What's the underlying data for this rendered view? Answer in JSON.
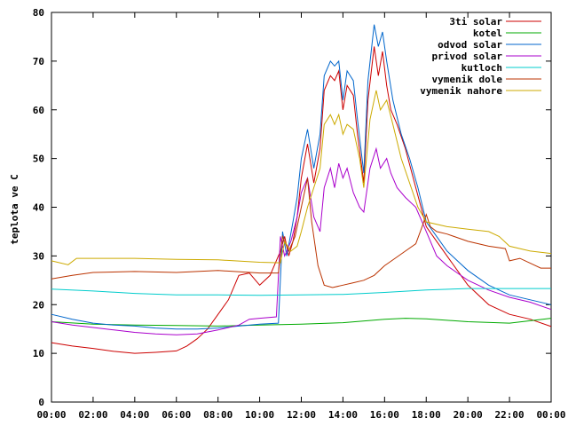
{
  "chart_data": {
    "type": "line",
    "title": "",
    "xlabel": "",
    "ylabel": "teplota ve C",
    "xlim": [
      0,
      24
    ],
    "ylim": [
      0,
      80
    ],
    "grid": false,
    "legend": "top-right",
    "x_ticks": [
      "00:00",
      "02:00",
      "04:00",
      "06:00",
      "08:00",
      "10:00",
      "12:00",
      "14:00",
      "16:00",
      "18:00",
      "20:00",
      "22:00",
      "00:00"
    ],
    "y_ticks": [
      0,
      10,
      20,
      30,
      40,
      50,
      60,
      70,
      80
    ],
    "series": [
      {
        "name": "3ti solar",
        "color": "#cc0000",
        "points": [
          [
            0,
            12.2
          ],
          [
            1,
            11.5
          ],
          [
            2,
            11
          ],
          [
            3,
            10.4
          ],
          [
            4,
            10
          ],
          [
            5,
            10.2
          ],
          [
            6,
            10.5
          ],
          [
            6.5,
            11.5
          ],
          [
            7,
            13
          ],
          [
            7.5,
            15
          ],
          [
            8,
            18
          ],
          [
            8.5,
            21
          ],
          [
            9,
            26
          ],
          [
            9.5,
            26.5
          ],
          [
            10,
            24
          ],
          [
            10.5,
            26
          ],
          [
            11,
            31
          ],
          [
            11.2,
            34
          ],
          [
            11.4,
            30
          ],
          [
            11.6,
            33
          ],
          [
            11.8,
            38
          ],
          [
            12,
            46
          ],
          [
            12.3,
            53
          ],
          [
            12.6,
            45
          ],
          [
            12.9,
            52
          ],
          [
            13.1,
            64
          ],
          [
            13.4,
            67
          ],
          [
            13.6,
            66
          ],
          [
            13.8,
            68
          ],
          [
            14,
            60
          ],
          [
            14.2,
            65
          ],
          [
            14.5,
            63
          ],
          [
            14.7,
            55
          ],
          [
            15,
            45
          ],
          [
            15.2,
            62
          ],
          [
            15.5,
            73
          ],
          [
            15.7,
            67
          ],
          [
            15.9,
            72
          ],
          [
            16.1,
            65
          ],
          [
            16.3,
            60
          ],
          [
            16.6,
            57
          ],
          [
            17,
            52
          ],
          [
            17.5,
            44
          ],
          [
            18,
            36
          ],
          [
            18.5,
            33
          ],
          [
            19,
            30
          ],
          [
            19.5,
            27
          ],
          [
            20,
            24
          ],
          [
            21,
            20
          ],
          [
            22,
            18
          ],
          [
            23,
            17
          ],
          [
            24,
            15.5
          ]
        ]
      },
      {
        "name": "kotel",
        "color": "#00aa00",
        "points": [
          [
            0,
            16.5
          ],
          [
            2,
            16
          ],
          [
            4,
            15.8
          ],
          [
            6,
            15.7
          ],
          [
            8,
            15.6
          ],
          [
            10,
            15.8
          ],
          [
            12,
            16
          ],
          [
            14,
            16.3
          ],
          [
            16,
            17
          ],
          [
            17,
            17.2
          ],
          [
            18,
            17.1
          ],
          [
            20,
            16.5
          ],
          [
            22,
            16.2
          ],
          [
            24,
            17.2
          ]
        ]
      },
      {
        "name": "odvod solar",
        "color": "#0066cc",
        "points": [
          [
            0,
            18
          ],
          [
            1,
            17
          ],
          [
            2,
            16.2
          ],
          [
            3,
            15.8
          ],
          [
            4,
            15.6
          ],
          [
            5,
            15.2
          ],
          [
            6,
            15
          ],
          [
            7,
            15
          ],
          [
            8,
            15.2
          ],
          [
            9,
            15.6
          ],
          [
            10,
            16
          ],
          [
            10.9,
            16.2
          ],
          [
            11.1,
            35
          ],
          [
            11.3,
            30
          ],
          [
            11.6,
            37
          ],
          [
            11.8,
            42
          ],
          [
            12,
            50
          ],
          [
            12.3,
            56
          ],
          [
            12.6,
            48
          ],
          [
            12.9,
            55
          ],
          [
            13.1,
            67
          ],
          [
            13.4,
            70
          ],
          [
            13.6,
            69
          ],
          [
            13.8,
            70
          ],
          [
            14,
            62
          ],
          [
            14.2,
            68
          ],
          [
            14.5,
            66
          ],
          [
            14.7,
            58
          ],
          [
            15,
            47
          ],
          [
            15.2,
            66
          ],
          [
            15.5,
            77.5
          ],
          [
            15.7,
            73
          ],
          [
            15.9,
            76
          ],
          [
            16.1,
            70
          ],
          [
            16.4,
            62
          ],
          [
            16.8,
            55
          ],
          [
            17.2,
            50
          ],
          [
            17.6,
            44
          ],
          [
            18,
            37
          ],
          [
            18.5,
            34
          ],
          [
            19,
            31
          ],
          [
            19.5,
            29
          ],
          [
            20,
            27
          ],
          [
            21,
            24
          ],
          [
            22,
            22
          ],
          [
            23,
            21
          ],
          [
            24,
            20
          ]
        ]
      },
      {
        "name": "privod solar",
        "color": "#aa00cc",
        "points": [
          [
            0,
            16.5
          ],
          [
            1,
            15.8
          ],
          [
            2,
            15.3
          ],
          [
            3,
            14.8
          ],
          [
            4,
            14.3
          ],
          [
            5,
            14
          ],
          [
            6,
            13.8
          ],
          [
            7,
            14
          ],
          [
            8,
            14.8
          ],
          [
            9,
            15.8
          ],
          [
            9.5,
            17
          ],
          [
            10,
            17.2
          ],
          [
            10.8,
            17.5
          ],
          [
            11,
            34
          ],
          [
            11.2,
            30
          ],
          [
            11.5,
            33
          ],
          [
            11.8,
            38
          ],
          [
            12,
            43
          ],
          [
            12.3,
            46
          ],
          [
            12.6,
            38
          ],
          [
            12.9,
            35
          ],
          [
            13.1,
            44
          ],
          [
            13.4,
            48
          ],
          [
            13.6,
            44
          ],
          [
            13.8,
            49
          ],
          [
            14,
            46
          ],
          [
            14.2,
            48
          ],
          [
            14.5,
            43
          ],
          [
            14.8,
            40
          ],
          [
            15,
            39
          ],
          [
            15.3,
            48
          ],
          [
            15.6,
            52
          ],
          [
            15.8,
            48
          ],
          [
            16.1,
            50
          ],
          [
            16.3,
            47
          ],
          [
            16.6,
            44
          ],
          [
            17,
            42
          ],
          [
            17.5,
            40
          ],
          [
            18,
            35
          ],
          [
            18.5,
            30
          ],
          [
            19,
            28
          ],
          [
            19.5,
            26.5
          ],
          [
            20,
            25
          ],
          [
            21,
            23
          ],
          [
            22,
            21.5
          ],
          [
            23,
            20.5
          ],
          [
            24,
            19
          ]
        ]
      },
      {
        "name": "kutloch",
        "color": "#00cccc",
        "points": [
          [
            0,
            23.2
          ],
          [
            2,
            22.8
          ],
          [
            4,
            22.3
          ],
          [
            6,
            22
          ],
          [
            8,
            22
          ],
          [
            10,
            21.9
          ],
          [
            12,
            22
          ],
          [
            14,
            22.1
          ],
          [
            16,
            22.5
          ],
          [
            18,
            23
          ],
          [
            20,
            23.3
          ],
          [
            22,
            23.3
          ],
          [
            24,
            23.3
          ]
        ]
      },
      {
        "name": "vymenik dole",
        "color": "#bb3300",
        "points": [
          [
            0,
            25.3
          ],
          [
            1,
            26
          ],
          [
            2,
            26.6
          ],
          [
            4,
            26.8
          ],
          [
            6,
            26.6
          ],
          [
            8,
            27
          ],
          [
            10,
            26.5
          ],
          [
            10.9,
            26.5
          ],
          [
            11.1,
            34
          ],
          [
            11.4,
            31
          ],
          [
            11.7,
            34
          ],
          [
            12,
            40
          ],
          [
            12.3,
            46
          ],
          [
            12.5,
            37
          ],
          [
            12.8,
            28
          ],
          [
            13.1,
            24
          ],
          [
            13.5,
            23.5
          ],
          [
            14,
            24
          ],
          [
            14.5,
            24.5
          ],
          [
            15,
            25
          ],
          [
            15.5,
            26
          ],
          [
            16,
            28
          ],
          [
            16.5,
            29.5
          ],
          [
            17,
            31
          ],
          [
            17.5,
            32.5
          ],
          [
            17.8,
            36
          ],
          [
            18,
            38.5
          ],
          [
            18.2,
            36
          ],
          [
            18.5,
            35
          ],
          [
            19,
            34.5
          ],
          [
            20,
            33
          ],
          [
            21,
            32
          ],
          [
            21.8,
            31.5
          ],
          [
            22,
            29
          ],
          [
            22.5,
            29.5
          ],
          [
            23,
            28.5
          ],
          [
            23.5,
            27.5
          ],
          [
            24,
            27.5
          ]
        ]
      },
      {
        "name": "vymenik nahore",
        "color": "#ccaa00",
        "points": [
          [
            0,
            29
          ],
          [
            0.8,
            28.2
          ],
          [
            1.2,
            29.5
          ],
          [
            2,
            29.5
          ],
          [
            4,
            29.5
          ],
          [
            6,
            29.3
          ],
          [
            8,
            29.2
          ],
          [
            10,
            28.7
          ],
          [
            11,
            28.6
          ],
          [
            11.2,
            33
          ],
          [
            11.5,
            31
          ],
          [
            11.8,
            32
          ],
          [
            12,
            35
          ],
          [
            12.3,
            40
          ],
          [
            12.6,
            44
          ],
          [
            12.9,
            48
          ],
          [
            13.1,
            57
          ],
          [
            13.4,
            59
          ],
          [
            13.6,
            57
          ],
          [
            13.8,
            59
          ],
          [
            14,
            55
          ],
          [
            14.2,
            57
          ],
          [
            14.5,
            56
          ],
          [
            14.8,
            50
          ],
          [
            15,
            44
          ],
          [
            15.3,
            58
          ],
          [
            15.6,
            64
          ],
          [
            15.8,
            60
          ],
          [
            16.1,
            62
          ],
          [
            16.4,
            57
          ],
          [
            16.8,
            50
          ],
          [
            17.2,
            45
          ],
          [
            17.6,
            40
          ],
          [
            18,
            37
          ],
          [
            19,
            36
          ],
          [
            20,
            35.5
          ],
          [
            21,
            35
          ],
          [
            21.5,
            34
          ],
          [
            22,
            32
          ],
          [
            23,
            31
          ],
          [
            24,
            30.5
          ]
        ]
      }
    ]
  }
}
